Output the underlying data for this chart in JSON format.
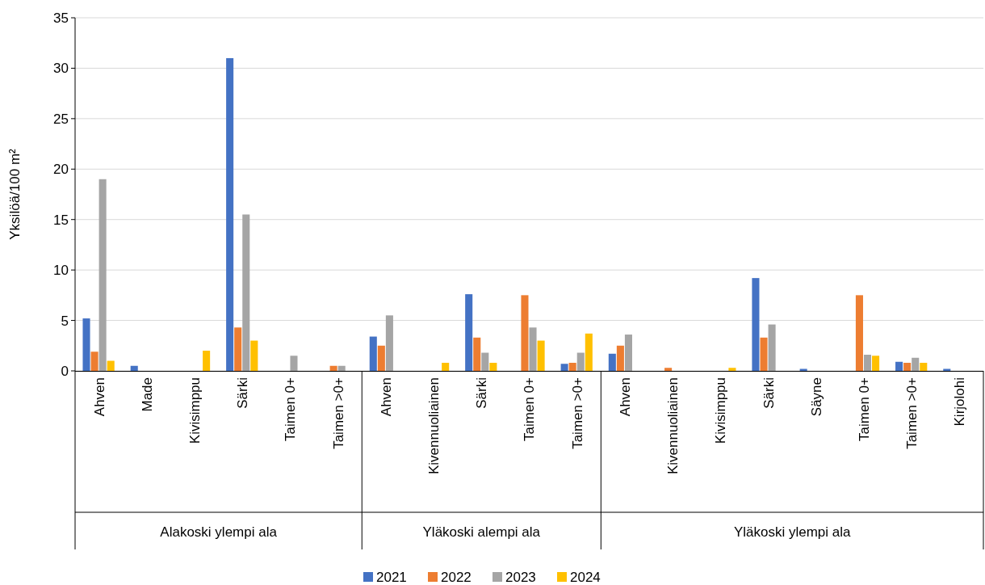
{
  "chart_data": {
    "type": "bar",
    "ylabel": "Yksilöä/100 m²",
    "categories": [
      "Ahven",
      "Made",
      "Kivisimppu",
      "Särki",
      "Taimen 0+",
      "Taimen >0+",
      "Ahven",
      "Kivennuoliainen",
      "Särki",
      "Taimen 0+",
      "Taimen >0+",
      "Ahven",
      "Kivennuoliainen",
      "Kivisimppu",
      "Särki",
      "Säyne",
      "Taimen 0+",
      "Taimen >0+",
      "Kirjolohi"
    ],
    "series": [
      {
        "name": "2021",
        "color": "#4472c4",
        "values": [
          5.2,
          0.5,
          0,
          31,
          0,
          0,
          3.4,
          0,
          7.6,
          0,
          0.7,
          1.7,
          0,
          0,
          9.2,
          0.2,
          0,
          0.9,
          0.2
        ]
      },
      {
        "name": "2022",
        "color": "#ed7d31",
        "values": [
          1.9,
          0,
          0,
          4.3,
          0,
          0.5,
          2.5,
          0,
          3.3,
          7.5,
          0.8,
          2.5,
          0.3,
          0,
          3.3,
          0,
          7.5,
          0.8,
          0
        ]
      },
      {
        "name": "2023",
        "color": "#a5a5a5",
        "values": [
          19,
          0,
          0,
          15.5,
          1.5,
          0.5,
          5.5,
          0,
          1.8,
          4.3,
          1.8,
          3.6,
          0,
          0,
          4.6,
          0,
          1.6,
          1.3,
          0
        ]
      },
      {
        "name": "2024",
        "color": "#ffc000",
        "values": [
          1.0,
          0,
          2.0,
          3.0,
          0,
          0,
          0,
          0.8,
          0.8,
          3.0,
          3.7,
          0,
          0,
          0.3,
          0,
          0,
          1.5,
          0.8,
          0
        ]
      }
    ],
    "annotations": [
      "Alakoski ylempi ala",
      "Yläkoski alempi ala",
      "Yläkoski ylempi ala"
    ],
    "ylim": [
      0,
      35
    ],
    "yticks": [
      0,
      5,
      10,
      15,
      20,
      25,
      30,
      35
    ],
    "grid": "y",
    "legend": "bottom"
  }
}
